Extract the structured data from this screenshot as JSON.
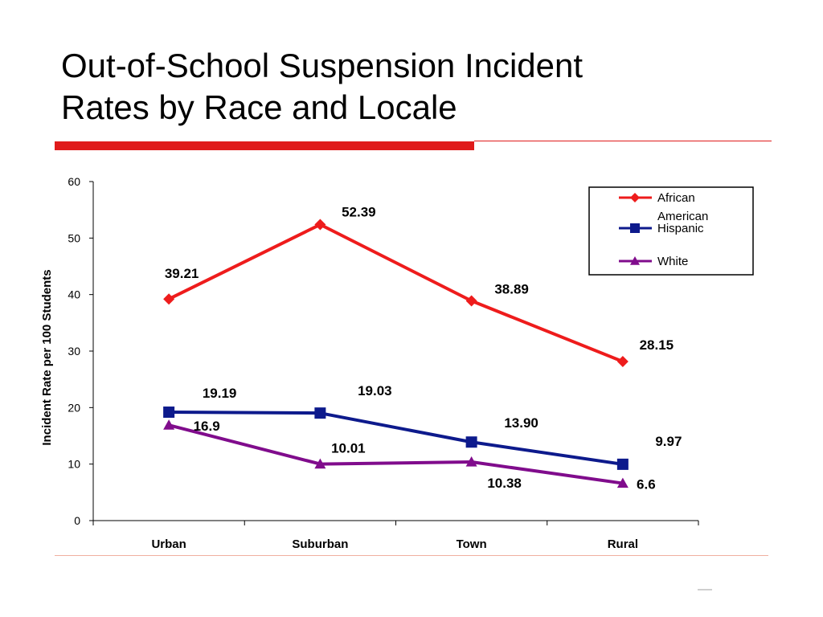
{
  "slide": {
    "title_line1": "Out-of-School Suspension Incident",
    "title_line2": "Rates by Race and Locale"
  },
  "colors": {
    "accent_red": "#e01b1b",
    "african_american": "#ee1c1c",
    "hispanic": "#0d1a8c",
    "white": "#800c8c"
  },
  "chart_data": {
    "type": "line",
    "title": "",
    "xlabel": "",
    "ylabel": "Incident Rate per 100 Students",
    "ylim": [
      0,
      60
    ],
    "yticks": [
      "0",
      "10",
      "20",
      "30",
      "40",
      "50",
      "60"
    ],
    "categories": [
      "Urban",
      "Suburban",
      "Town",
      "Rural"
    ],
    "grid": false,
    "legend_position": "top-right",
    "series": [
      {
        "name_line1": "African",
        "name_line2": "American",
        "marker": "diamond",
        "color": "#ee1c1c",
        "values": [
          39.21,
          52.39,
          38.89,
          28.15
        ],
        "labels": [
          "39.21",
          "52.39",
          "38.89",
          "28.15"
        ]
      },
      {
        "name_line1": "Hispanic",
        "name_line2": "",
        "marker": "square",
        "color": "#0d1a8c",
        "values": [
          19.19,
          19.03,
          13.9,
          9.97
        ],
        "labels": [
          "19.19",
          "19.03",
          "13.90",
          "9.97"
        ]
      },
      {
        "name_line1": "White",
        "name_line2": "",
        "marker": "triangle",
        "color": "#800c8c",
        "values": [
          16.9,
          10.01,
          10.38,
          6.6
        ],
        "labels": [
          "16.9",
          "10.01",
          "10.38",
          "6.6"
        ]
      }
    ]
  }
}
